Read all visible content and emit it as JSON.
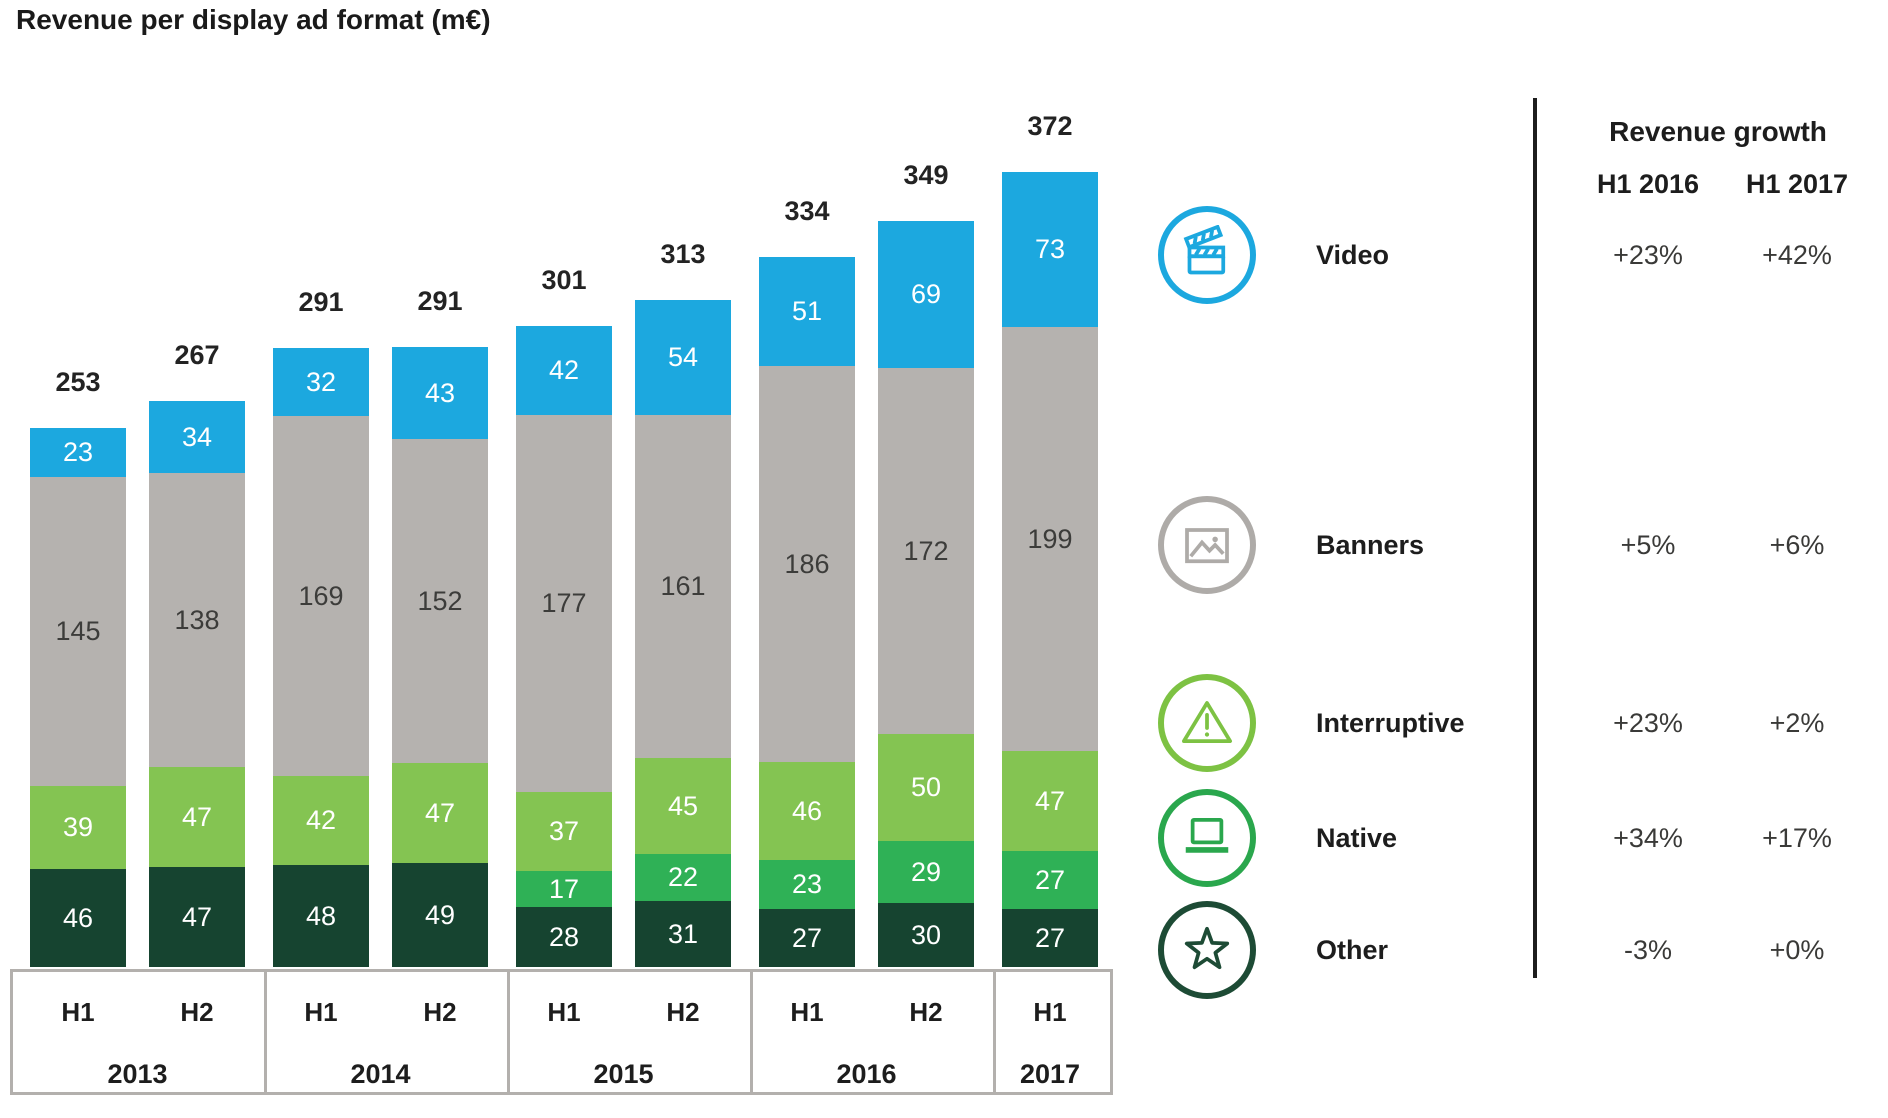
{
  "title": "Revenue per display ad format (m€)",
  "chart_data": {
    "type": "bar",
    "subtype": "stacked",
    "title": "Revenue per display ad format (m€)",
    "unit": "m€",
    "categories": [
      "H1 2013",
      "H2 2013",
      "H1 2014",
      "H2 2014",
      "H1 2015",
      "H2 2015",
      "H1 2016",
      "H2 2016",
      "H1 2017"
    ],
    "groups": [
      {
        "year": "2013",
        "halves": [
          "H1",
          "H2"
        ]
      },
      {
        "year": "2014",
        "halves": [
          "H1",
          "H2"
        ]
      },
      {
        "year": "2015",
        "halves": [
          "H1",
          "H2"
        ]
      },
      {
        "year": "2016",
        "halves": [
          "H1",
          "H2"
        ]
      },
      {
        "year": "2017",
        "halves": [
          "H1"
        ]
      }
    ],
    "series": [
      {
        "name": "Other",
        "color": "#164430",
        "label_color": "#ffffff",
        "values": [
          46,
          47,
          48,
          49,
          28,
          31,
          27,
          30,
          27
        ]
      },
      {
        "name": "Native",
        "color": "#2fb156",
        "label_color": "#ffffff",
        "values": [
          null,
          null,
          null,
          null,
          17,
          22,
          23,
          29,
          27
        ]
      },
      {
        "name": "Interruptive",
        "color": "#84c452",
        "label_color": "#ffffff",
        "values": [
          39,
          47,
          42,
          47,
          37,
          45,
          46,
          50,
          47
        ]
      },
      {
        "name": "Banners",
        "color": "#b5b2af",
        "label_color": "#3c3c3a",
        "values": [
          145,
          138,
          169,
          152,
          177,
          161,
          186,
          172,
          199
        ]
      },
      {
        "name": "Video",
        "color": "#1ca8df",
        "label_color": "#ffffff",
        "values": [
          23,
          34,
          32,
          43,
          42,
          54,
          51,
          69,
          73
        ]
      }
    ],
    "totals": [
      253,
      267,
      291,
      291,
      301,
      313,
      334,
      349,
      372
    ],
    "ylim": [
      0,
      400
    ],
    "value_labels": "inside segments",
    "grid": false,
    "legend_position": "right"
  },
  "legend": {
    "items": [
      {
        "label": "Video",
        "icon": "clapperboard-icon",
        "color": "#1ca8df",
        "growth": [
          "+23%",
          "+42%"
        ]
      },
      {
        "label": "Banners",
        "icon": "image-icon",
        "color": "#aeaba8",
        "growth": [
          "+5%",
          "+6%"
        ]
      },
      {
        "label": "Interruptive",
        "icon": "warning-triangle-icon",
        "color": "#7dc243",
        "growth": [
          "+23%",
          "+2%"
        ]
      },
      {
        "label": "Native",
        "icon": "laptop-icon",
        "color": "#2aa74d",
        "growth": [
          "+34%",
          "+17%"
        ]
      },
      {
        "label": "Other",
        "icon": "star-icon",
        "color": "#1d4b35",
        "growth": [
          "-3%",
          "+0%"
        ]
      }
    ]
  },
  "growth_table": {
    "header": "Revenue growth",
    "columns": [
      "H1 2016",
      "H1 2017"
    ]
  }
}
